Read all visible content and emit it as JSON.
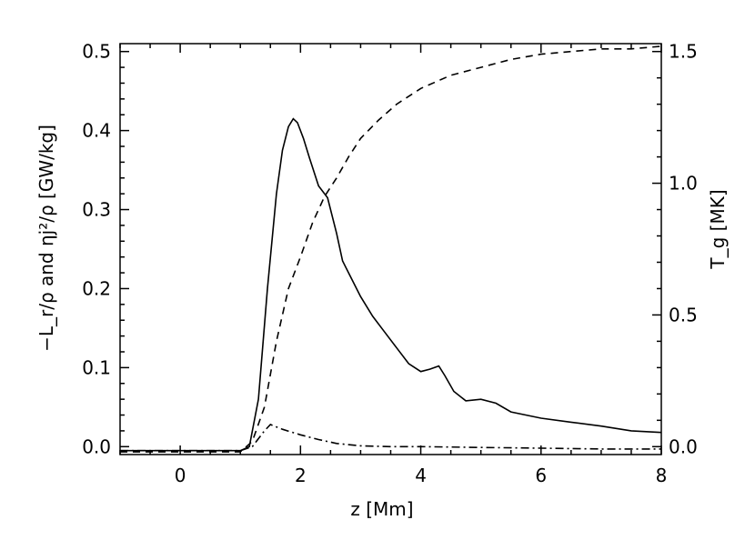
{
  "chart_data": {
    "type": "line",
    "xlabel": "z [Mm]",
    "ylabel_left": "−L_r/ρ and ηj²/ρ [GW/kg]",
    "ylabel_right": "T_g [MK]",
    "xlim": [
      -1,
      8
    ],
    "ylim_left": [
      -0.01,
      0.51
    ],
    "ylim_right": [
      -0.03,
      1.53
    ],
    "xticks": [
      "0",
      "2",
      "4",
      "6",
      "8"
    ],
    "xtick_values": [
      0,
      2,
      4,
      6,
      8
    ],
    "yticks_left": [
      "0.0",
      "0.1",
      "0.2",
      "0.3",
      "0.4",
      "0.5"
    ],
    "ytick_values_left": [
      0.0,
      0.1,
      0.2,
      0.3,
      0.4,
      0.5
    ],
    "yticks_right": [
      "0.0",
      "0.5",
      "1.0",
      "1.5"
    ],
    "ytick_values_right": [
      0.0,
      0.5,
      1.0,
      1.5
    ],
    "grid": false,
    "series": [
      {
        "style": "solid",
        "axis": "left",
        "x": [
          -1.0,
          0.0,
          1.0,
          1.15,
          1.3,
          1.45,
          1.6,
          1.7,
          1.8,
          1.88,
          1.95,
          2.05,
          2.15,
          2.3,
          2.45,
          2.6,
          2.7,
          2.8,
          3.0,
          3.2,
          3.4,
          3.6,
          3.8,
          4.0,
          4.15,
          4.3,
          4.4,
          4.55,
          4.75,
          5.0,
          5.25,
          5.5,
          6.0,
          6.5,
          7.0,
          7.5,
          8.0
        ],
        "y": [
          -0.005,
          -0.005,
          -0.005,
          0.0,
          0.06,
          0.2,
          0.32,
          0.375,
          0.405,
          0.415,
          0.41,
          0.39,
          0.365,
          0.33,
          0.315,
          0.27,
          0.235,
          0.22,
          0.19,
          0.165,
          0.145,
          0.125,
          0.105,
          0.095,
          0.098,
          0.102,
          0.09,
          0.07,
          0.058,
          0.06,
          0.055,
          0.044,
          0.036,
          0.031,
          0.026,
          0.02,
          0.018
        ]
      },
      {
        "style": "dashed",
        "axis": "right",
        "x": [
          -1.0,
          0.0,
          1.0,
          1.2,
          1.4,
          1.6,
          1.8,
          2.0,
          2.2,
          2.4,
          2.6,
          2.8,
          3.0,
          3.3,
          3.6,
          4.0,
          4.5,
          5.0,
          5.5,
          6.0,
          6.5,
          7.0,
          7.5,
          8.0
        ],
        "y": [
          -0.02,
          -0.02,
          -0.02,
          0.02,
          0.15,
          0.4,
          0.6,
          0.72,
          0.85,
          0.95,
          1.02,
          1.1,
          1.17,
          1.24,
          1.3,
          1.36,
          1.41,
          1.44,
          1.47,
          1.49,
          1.5,
          1.51,
          1.51,
          1.52
        ]
      },
      {
        "style": "dashdot",
        "axis": "left",
        "x": [
          -1.0,
          0.0,
          1.0,
          1.2,
          1.4,
          1.5,
          1.7,
          2.0,
          2.3,
          2.6,
          3.0,
          3.5,
          4.0,
          5.0,
          6.0,
          7.0,
          8.0
        ],
        "y": [
          -0.005,
          -0.005,
          -0.005,
          0.0,
          0.02,
          0.028,
          0.022,
          0.015,
          0.009,
          0.004,
          0.001,
          0.0,
          0.0,
          -0.001,
          -0.002,
          -0.003,
          -0.003
        ]
      }
    ]
  }
}
